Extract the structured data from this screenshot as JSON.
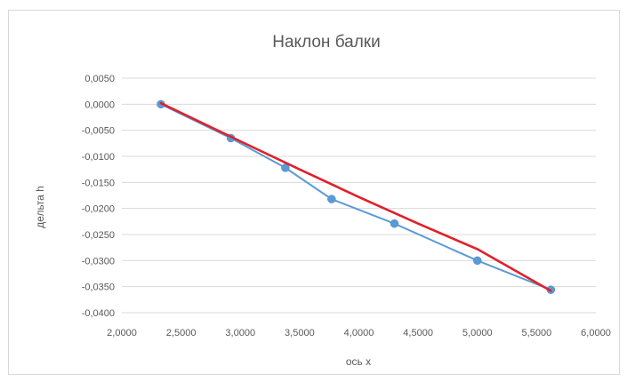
{
  "chart_data": {
    "type": "scatter",
    "title": "Наклон балки",
    "xlabel": "ось x",
    "ylabel": "дельта h",
    "xlim": [
      2.0,
      6.0
    ],
    "ylim": [
      -0.04,
      0.005
    ],
    "x_ticks": [
      "2,0000",
      "2,5000",
      "3,0000",
      "3,5000",
      "4,0000",
      "4,5000",
      "5,0000",
      "5,5000",
      "6,0000"
    ],
    "y_ticks": [
      "0,0050",
      "0,0000",
      "-0,0050",
      "-0,0100",
      "-0,0150",
      "-0,0200",
      "-0,0250",
      "-0,0300",
      "-0,0350",
      "-0,0400"
    ],
    "grid": "horizontal",
    "legend": "none",
    "series": [
      {
        "style": "markers-with-lines",
        "color": "#5b9bd5",
        "points": [
          {
            "x": 2.33,
            "y": 0.0
          },
          {
            "x": 2.92,
            "y": -0.0065
          },
          {
            "x": 3.38,
            "y": -0.0122
          },
          {
            "x": 3.77,
            "y": -0.0182
          },
          {
            "x": 4.3,
            "y": -0.0229
          },
          {
            "x": 5.0,
            "y": -0.03
          },
          {
            "x": 5.62,
            "y": -0.0356
          }
        ]
      }
    ],
    "trendline": {
      "color": "#e0202b",
      "type": "polynomial",
      "points": [
        {
          "x": 2.33,
          "y": 0.0002
        },
        {
          "x": 3.0,
          "y": -0.0071
        },
        {
          "x": 3.5,
          "y": -0.0125
        },
        {
          "x": 4.0,
          "y": -0.0178
        },
        {
          "x": 4.5,
          "y": -0.0229
        },
        {
          "x": 5.0,
          "y": -0.0278
        },
        {
          "x": 5.62,
          "y": -0.0358
        }
      ]
    }
  }
}
